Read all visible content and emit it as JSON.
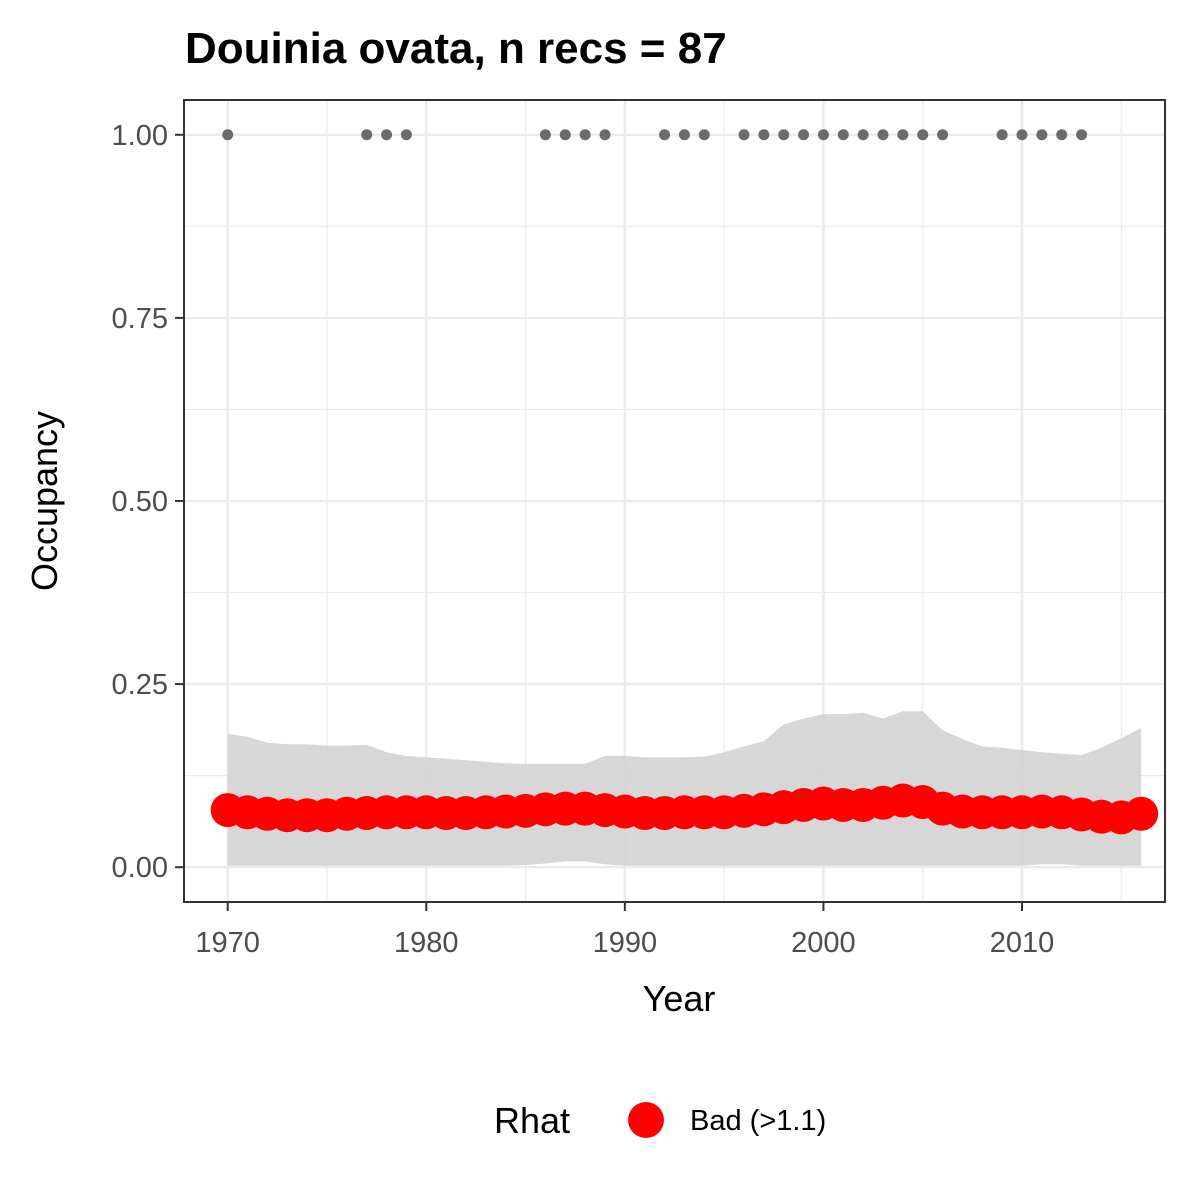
{
  "chart_data": {
    "type": "scatter",
    "title": "Douinia ovata, n recs = 87",
    "xlabel": "Year",
    "ylabel": "Occupancy",
    "xlim": [
      1967.8,
      2017.2
    ],
    "ylim": [
      -0.0475,
      1.0475
    ],
    "x_ticks": [
      1970,
      1980,
      1990,
      2000,
      2010
    ],
    "x_tick_labels": [
      "1970",
      "1980",
      "1990",
      "2000",
      "2010"
    ],
    "y_ticks": [
      0,
      0.25,
      0.5,
      0.75,
      1
    ],
    "y_tick_labels": [
      "0.00",
      "0.25",
      "0.50",
      "0.75",
      "1.00"
    ],
    "grid": true,
    "legend": {
      "title": "Rhat",
      "position": "bottom",
      "entries": [
        {
          "label": "Bad (>1.1)",
          "color": "#ff0000"
        }
      ]
    },
    "colors": {
      "ribbon": "#d3d3d3",
      "estimate": "#ff0000",
      "observation": "#6b6b6b",
      "grid": "#ebebeb",
      "panel_border": "#333333"
    },
    "years": [
      1970,
      1971,
      1972,
      1973,
      1974,
      1975,
      1976,
      1977,
      1978,
      1979,
      1980,
      1981,
      1982,
      1983,
      1984,
      1985,
      1986,
      1987,
      1988,
      1989,
      1990,
      1991,
      1992,
      1993,
      1994,
      1995,
      1996,
      1997,
      1998,
      1999,
      2000,
      2001,
      2002,
      2003,
      2004,
      2005,
      2006,
      2007,
      2008,
      2009,
      2010,
      2011,
      2012,
      2013,
      2014,
      2015,
      2016
    ],
    "series": [
      {
        "name": "Bad (>1.1)",
        "values": [
          0.078,
          0.075,
          0.073,
          0.071,
          0.071,
          0.071,
          0.073,
          0.074,
          0.075,
          0.075,
          0.075,
          0.074,
          0.074,
          0.075,
          0.076,
          0.077,
          0.079,
          0.08,
          0.08,
          0.078,
          0.076,
          0.074,
          0.074,
          0.075,
          0.075,
          0.075,
          0.077,
          0.079,
          0.082,
          0.085,
          0.087,
          0.085,
          0.085,
          0.088,
          0.091,
          0.089,
          0.08,
          0.076,
          0.075,
          0.075,
          0.075,
          0.076,
          0.075,
          0.072,
          0.069,
          0.068,
          0.073
        ]
      }
    ],
    "ribbon": {
      "lower": [
        0.002,
        0.002,
        0.002,
        0.002,
        0.002,
        0.002,
        0.002,
        0.002,
        0.002,
        0.002,
        0.002,
        0.002,
        0.002,
        0.002,
        0.002,
        0.003,
        0.005,
        0.008,
        0.008,
        0.004,
        0.002,
        0.002,
        0.002,
        0.002,
        0.002,
        0.002,
        0.002,
        0.002,
        0.002,
        0.002,
        0.002,
        0.002,
        0.002,
        0.002,
        0.002,
        0.002,
        0.002,
        0.002,
        0.002,
        0.002,
        0.002,
        0.004,
        0.004,
        0.002,
        0.002,
        0.002,
        0.002
      ],
      "upper": [
        0.182,
        0.178,
        0.17,
        0.168,
        0.168,
        0.166,
        0.166,
        0.167,
        0.157,
        0.152,
        0.15,
        0.148,
        0.146,
        0.144,
        0.142,
        0.141,
        0.141,
        0.141,
        0.141,
        0.152,
        0.152,
        0.15,
        0.15,
        0.15,
        0.151,
        0.157,
        0.165,
        0.172,
        0.195,
        0.203,
        0.209,
        0.209,
        0.211,
        0.203,
        0.213,
        0.213,
        0.187,
        0.175,
        0.165,
        0.163,
        0.16,
        0.157,
        0.155,
        0.153,
        0.163,
        0.176,
        0.19
      ]
    },
    "observations": {
      "name": "records",
      "y": 1,
      "x": [
        1970,
        1977,
        1978,
        1979,
        1986,
        1987,
        1988,
        1989,
        1992,
        1993,
        1994,
        1996,
        1997,
        1998,
        1999,
        2000,
        2001,
        2002,
        2003,
        2004,
        2005,
        2006,
        2009,
        2010,
        2011,
        2012,
        2013
      ]
    }
  }
}
